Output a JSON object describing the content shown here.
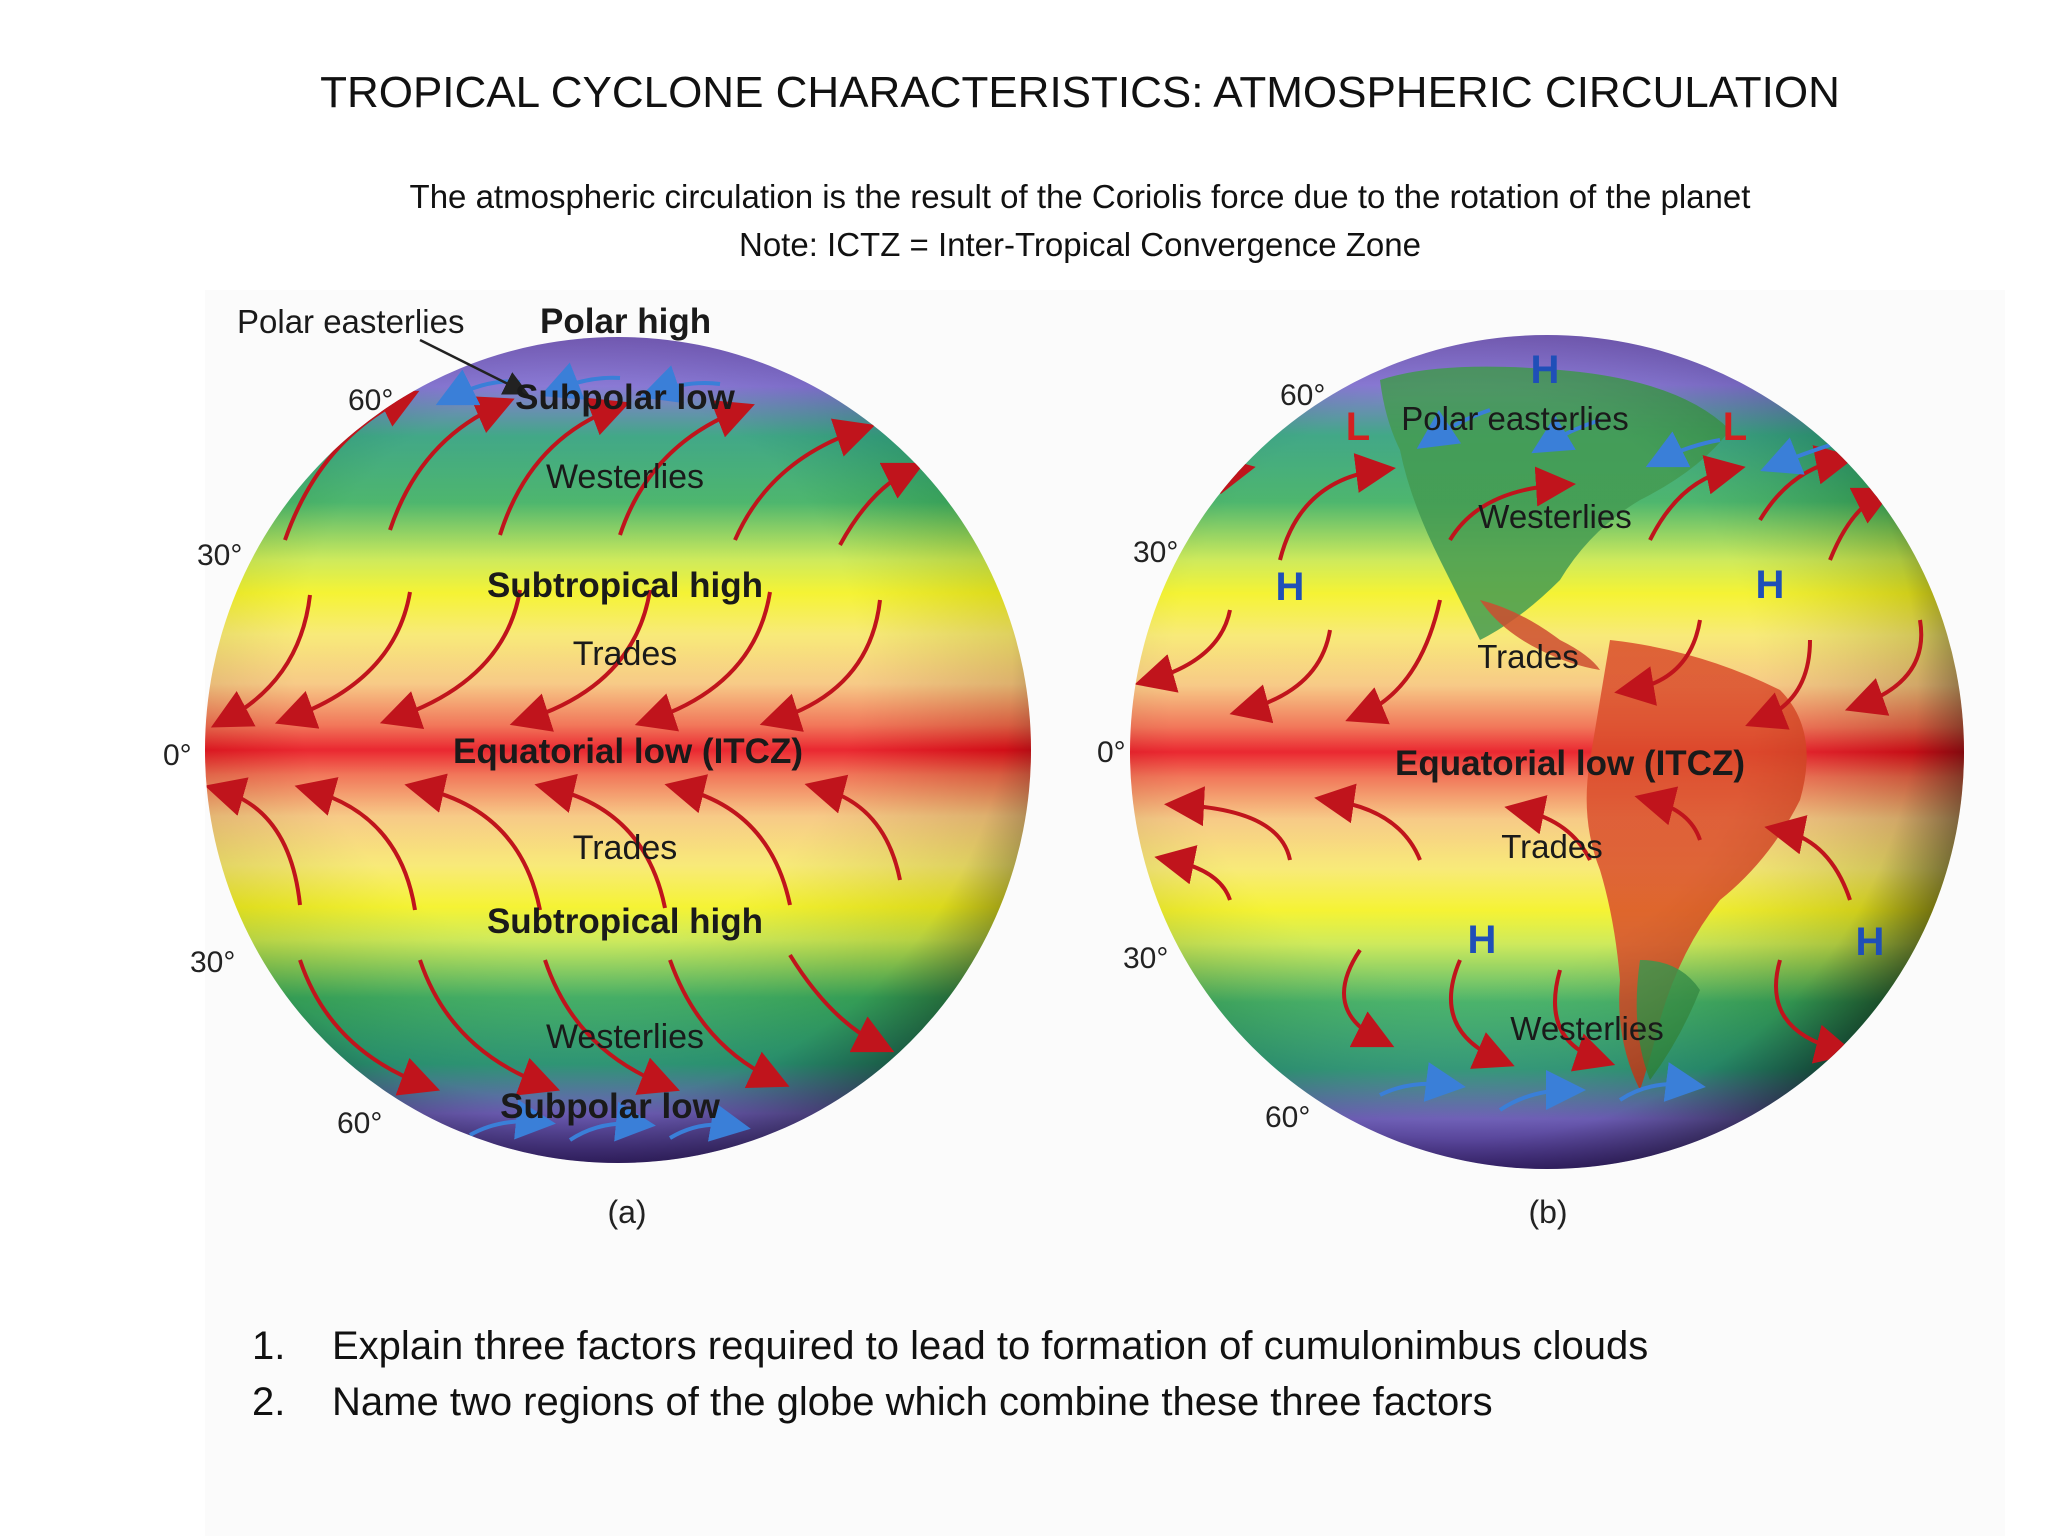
{
  "title": "TROPICAL CYCLONE CHARACTERISTICS: ATMOSPHERIC CIRCULATION",
  "subtitle_line1": "The atmospheric circulation is the result of the Coriolis force due to the rotation of the planet",
  "subtitle_line2": "Note: ICTZ = Inter-Tropical Convergence Zone",
  "figure_a": {
    "caption": "(a)",
    "labels": {
      "polar_easterlies": "Polar easterlies",
      "polar_high": "Polar high",
      "subpolar_low_north": "Subpolar low",
      "westerlies_north": "Westerlies",
      "subtropical_high_north": "Subtropical high",
      "trades_north": "Trades",
      "equatorial_low": "Equatorial low (ITCZ)",
      "trades_south": "Trades",
      "subtropical_high_south": "Subtropical high",
      "westerlies_south": "Westerlies",
      "subpolar_low_south": "Subpolar low"
    },
    "latitudes": {
      "n60": "60°",
      "n30": "30°",
      "eq": "0°",
      "s30": "30°",
      "s60": "60°"
    }
  },
  "figure_b": {
    "caption": "(b)",
    "labels": {
      "polar_easterlies": "Polar easterlies",
      "westerlies_north": "Westerlies",
      "trades_north": "Trades",
      "equatorial_low": "Equatorial low (ITCZ)",
      "trades_south": "Trades",
      "westerlies_south": "Westerlies"
    },
    "pressure_markers": {
      "high": "H",
      "low": "L"
    },
    "latitudes": {
      "n60": "60°",
      "n30": "30°",
      "eq": "0°",
      "s30": "30°",
      "s60": "60°"
    }
  },
  "colors": {
    "arrow_red": "#c0141c",
    "arrow_blue": "#3a7fd8",
    "high_marker": "#1f4fb8",
    "low_marker": "#d42020"
  },
  "questions": [
    {
      "number": "1.",
      "text": "Explain three factors required to lead to formation of cumulonimbus clouds"
    },
    {
      "number": "2.",
      "text": "Name two regions of the globe which combine these three factors"
    }
  ]
}
